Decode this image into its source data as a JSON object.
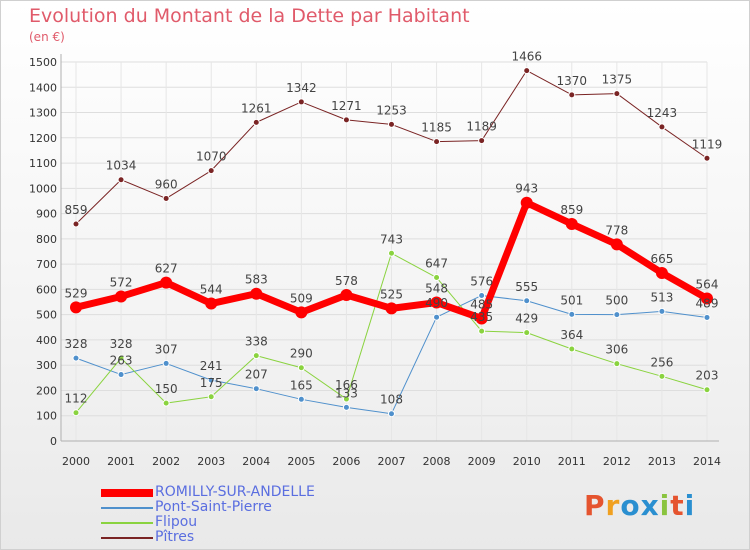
{
  "title": "Evolution du Montant de la Dette par Habitant",
  "subtitle": "(en €)",
  "logo": {
    "text": "Proxiti",
    "colors": [
      "#e5542f",
      "#f0a020",
      "#2a8fd0",
      "#2a8fd0",
      "#8ac43f",
      "#e5542f",
      "#2a8fd0"
    ]
  },
  "chart_data": {
    "type": "line",
    "x": [
      "2000",
      "2001",
      "2002",
      "2003",
      "2004",
      "2005",
      "2006",
      "2007",
      "2008",
      "2009",
      "2010",
      "2011",
      "2012",
      "2013",
      "2014"
    ],
    "ylim": [
      0,
      1500
    ],
    "yticks": [
      0,
      100,
      200,
      300,
      400,
      500,
      600,
      700,
      800,
      900,
      1000,
      1100,
      1200,
      1300,
      1400,
      1500
    ],
    "grid": true,
    "legend_position": "bottom-left",
    "series": [
      {
        "name": "ROMILLY-SUR-ANDELLE",
        "color": "#ff0000",
        "width": 7,
        "values": [
          529,
          572,
          627,
          544,
          583,
          509,
          578,
          525,
          548,
          485,
          943,
          859,
          778,
          665,
          564
        ]
      },
      {
        "name": "Pont-Saint-Pierre",
        "color": "#4f90cc",
        "width": 1,
        "values": [
          328,
          263,
          307,
          241,
          207,
          165,
          133,
          108,
          490,
          576,
          555,
          501,
          500,
          513,
          489
        ]
      },
      {
        "name": "Flipou",
        "color": "#8ad33f",
        "width": 1,
        "values": [
          112,
          328,
          150,
          175,
          338,
          290,
          166,
          743,
          647,
          435,
          429,
          364,
          306,
          256,
          203
        ]
      },
      {
        "name": "Pîtres",
        "color": "#7a2424",
        "width": 1,
        "values": [
          859,
          1034,
          960,
          1070,
          1261,
          1342,
          1271,
          1253,
          1185,
          1189,
          1466,
          1370,
          1375,
          1243,
          1119
        ]
      }
    ]
  }
}
